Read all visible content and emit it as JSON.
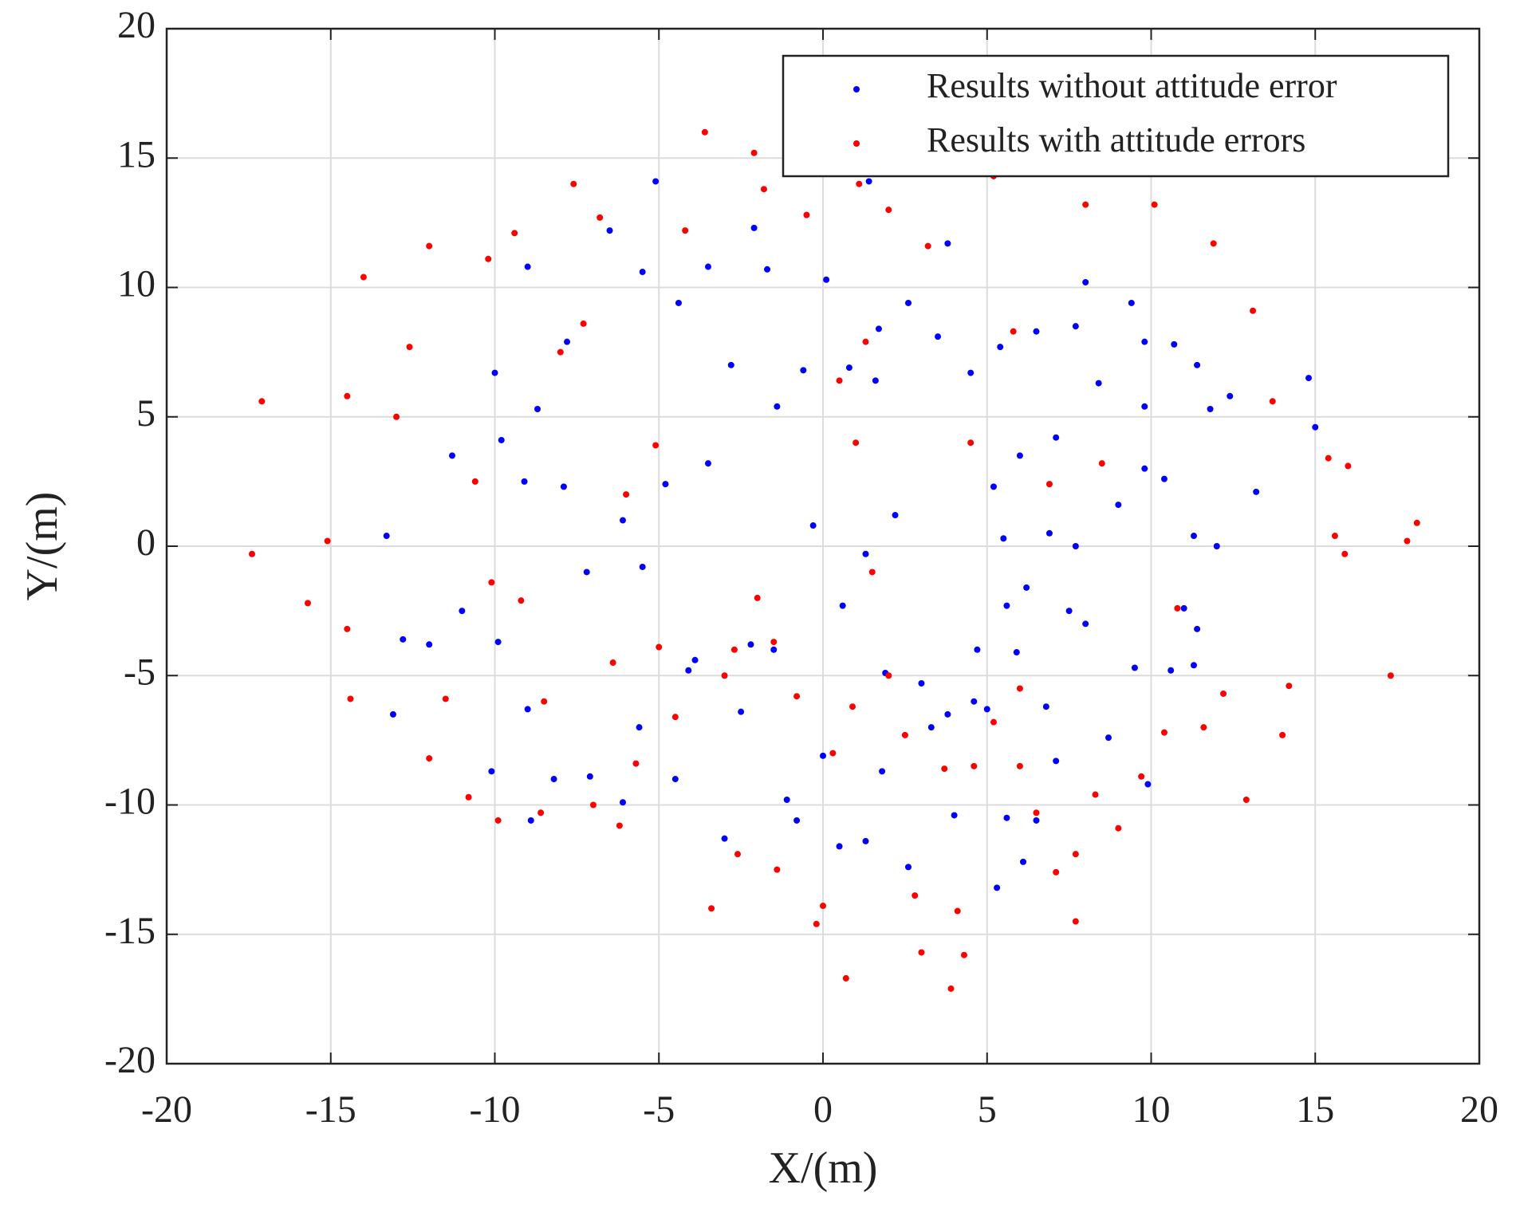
{
  "chart_data": {
    "type": "scatter",
    "xlabel": "X/(m)",
    "ylabel": "Y/(m)",
    "xlim": [
      -20,
      20
    ],
    "ylim": [
      -20,
      20
    ],
    "xticks": [
      -20,
      -15,
      -10,
      -5,
      0,
      5,
      10,
      15,
      20
    ],
    "yticks": [
      -20,
      -15,
      -10,
      -5,
      0,
      5,
      10,
      15,
      20
    ],
    "grid": true,
    "legend": "upper right",
    "series": [
      {
        "name": "Results without attitude error",
        "color": "#0000ff",
        "x": [
          -5.1,
          -6.5,
          -2.1,
          -1.7,
          -9.0,
          -3.5,
          -5.5,
          -7.8,
          -10.0,
          -11.3,
          -9.8,
          -13.3,
          -12.8,
          -12.0,
          -13.1,
          -11.0,
          -9.9,
          -10.1,
          -9.0,
          -8.9,
          -8.2,
          -7.1,
          -6.1,
          -5.6,
          -4.5,
          -3.9,
          -3.0,
          -2.5,
          -2.2,
          -1.1,
          -0.8,
          0.0,
          0.5,
          1.3,
          1.8,
          2.6,
          3.0,
          3.8,
          4.0,
          4.7,
          5.0,
          5.3,
          5.6,
          6.1,
          6.5,
          6.8,
          7.1,
          5.9,
          5.6,
          6.2,
          7.5,
          8.0,
          8.7,
          9.5,
          9.9,
          10.6,
          11.0,
          11.4,
          12.0,
          11.3,
          10.4,
          9.8,
          9.0,
          7.7,
          6.9,
          5.5,
          5.2,
          6.0,
          7.1,
          8.4,
          9.4,
          9.8,
          10.7,
          11.4,
          11.8,
          12.4,
          13.2,
          15.0,
          14.8,
          8.0,
          7.7,
          6.5,
          5.4,
          4.5,
          3.8,
          3.5,
          2.6,
          1.7,
          1.4,
          1.6,
          0.8,
          0.1,
          -0.6,
          -1.4,
          -2.8,
          -3.5,
          -4.4,
          -4.8,
          -5.5,
          -6.1,
          -7.2,
          -7.9,
          -8.7,
          -9.1,
          -0.3,
          0.6,
          1.9,
          2.2,
          1.3,
          -1.5,
          -4.1,
          3.3,
          4.6,
          11.3,
          9.8
        ],
        "values": [
          14.1,
          12.2,
          12.3,
          10.7,
          10.8,
          10.8,
          10.6,
          7.9,
          6.7,
          3.5,
          4.1,
          0.4,
          -3.6,
          -3.8,
          -6.5,
          -2.5,
          -3.7,
          -8.7,
          -6.3,
          -10.6,
          -9.0,
          -8.9,
          -9.9,
          -7.0,
          -9.0,
          -4.4,
          -11.3,
          -6.4,
          -3.8,
          -9.8,
          -10.6,
          -8.1,
          -11.6,
          -11.4,
          -8.7,
          -12.4,
          -5.3,
          -6.5,
          -10.4,
          -4.0,
          -6.3,
          -13.2,
          -10.5,
          -12.2,
          -10.6,
          -6.2,
          -8.3,
          -4.1,
          -2.3,
          -1.6,
          -2.5,
          -3.0,
          -7.4,
          -4.7,
          -9.2,
          -4.8,
          -2.4,
          -3.2,
          0.0,
          0.4,
          2.6,
          3.0,
          1.6,
          0.0,
          0.5,
          0.3,
          2.3,
          3.5,
          4.2,
          6.3,
          9.4,
          7.9,
          7.8,
          7.0,
          5.3,
          5.8,
          2.1,
          4.6,
          6.5,
          10.2,
          8.5,
          8.3,
          7.7,
          6.7,
          11.7,
          8.1,
          9.4,
          8.4,
          14.1,
          6.4,
          6.9,
          10.3,
          6.8,
          5.4,
          7.0,
          3.2,
          9.4,
          2.4,
          -0.8,
          1.0,
          -1.0,
          2.3,
          5.3,
          2.5,
          0.8,
          -2.3,
          -4.9,
          1.2,
          -0.3,
          -4.0,
          -4.8,
          -7.0,
          -6.0,
          -4.6,
          5.4
        ]
      },
      {
        "name": "Results with attitude errors",
        "color": "#ff0000",
        "x": [
          -17.1,
          -17.4,
          -15.7,
          -15.1,
          -14.5,
          -14.5,
          -14.0,
          -14.4,
          -13.0,
          -12.6,
          -12.0,
          -12.0,
          -11.5,
          -10.8,
          -10.6,
          -10.2,
          -10.1,
          -9.9,
          -9.4,
          -9.2,
          -8.5,
          -8.6,
          -7.6,
          -7.3,
          -7.0,
          -6.8,
          -6.4,
          -6.2,
          -5.7,
          -5.1,
          -5.0,
          -4.5,
          -4.2,
          -3.6,
          -3.4,
          -2.7,
          -2.6,
          -2.1,
          -1.8,
          -1.5,
          -1.4,
          -0.8,
          -0.5,
          -0.2,
          0.0,
          0.3,
          0.7,
          0.5,
          0.9,
          1.1,
          1.3,
          2.0,
          2.5,
          2.8,
          3.0,
          3.2,
          3.7,
          3.9,
          4.1,
          4.3,
          4.6,
          5.2,
          5.2,
          5.8,
          6.0,
          6.5,
          6.9,
          7.1,
          7.7,
          7.7,
          8.0,
          8.3,
          8.5,
          9.0,
          9.7,
          10.1,
          10.4,
          10.8,
          11.6,
          11.9,
          12.2,
          12.9,
          13.1,
          13.7,
          14.0,
          14.2,
          15.4,
          15.6,
          16.0,
          15.9,
          17.3,
          17.8,
          18.1,
          2.0,
          -3.0,
          1.0,
          -2.0,
          4.5,
          6.0,
          -6.0,
          -8.0,
          1.5
        ],
        "values": [
          5.6,
          -0.3,
          -2.2,
          0.2,
          5.8,
          -3.2,
          10.4,
          -5.9,
          5.0,
          7.7,
          11.6,
          -8.2,
          -5.9,
          -9.7,
          2.5,
          11.1,
          -1.4,
          -10.6,
          12.1,
          -2.1,
          -6.0,
          -10.3,
          14.0,
          8.6,
          -10.0,
          12.7,
          -4.5,
          -10.8,
          -8.4,
          3.9,
          -3.9,
          -6.6,
          12.2,
          16.0,
          -14.0,
          -4.0,
          -11.9,
          15.2,
          13.8,
          -3.7,
          -12.5,
          -5.8,
          12.8,
          -14.6,
          -13.9,
          -8.0,
          -16.7,
          6.4,
          -6.2,
          14.0,
          7.9,
          13.0,
          -7.3,
          -13.5,
          -15.7,
          11.6,
          -8.6,
          -17.1,
          -14.1,
          -15.8,
          -8.5,
          -6.8,
          14.3,
          8.3,
          -8.5,
          -10.3,
          2.4,
          -12.6,
          -14.5,
          -11.9,
          13.2,
          -9.6,
          3.2,
          -10.9,
          -8.9,
          13.2,
          -7.2,
          -2.4,
          -7.0,
          11.7,
          -5.7,
          -9.8,
          9.1,
          5.6,
          -7.3,
          -5.4,
          3.4,
          0.4,
          3.1,
          -0.3,
          -5.0,
          0.2,
          0.9,
          -5.0,
          -5.0,
          4.0,
          -2.0,
          4.0,
          -5.5,
          2.0,
          7.5,
          -1.0
        ]
      }
    ]
  }
}
